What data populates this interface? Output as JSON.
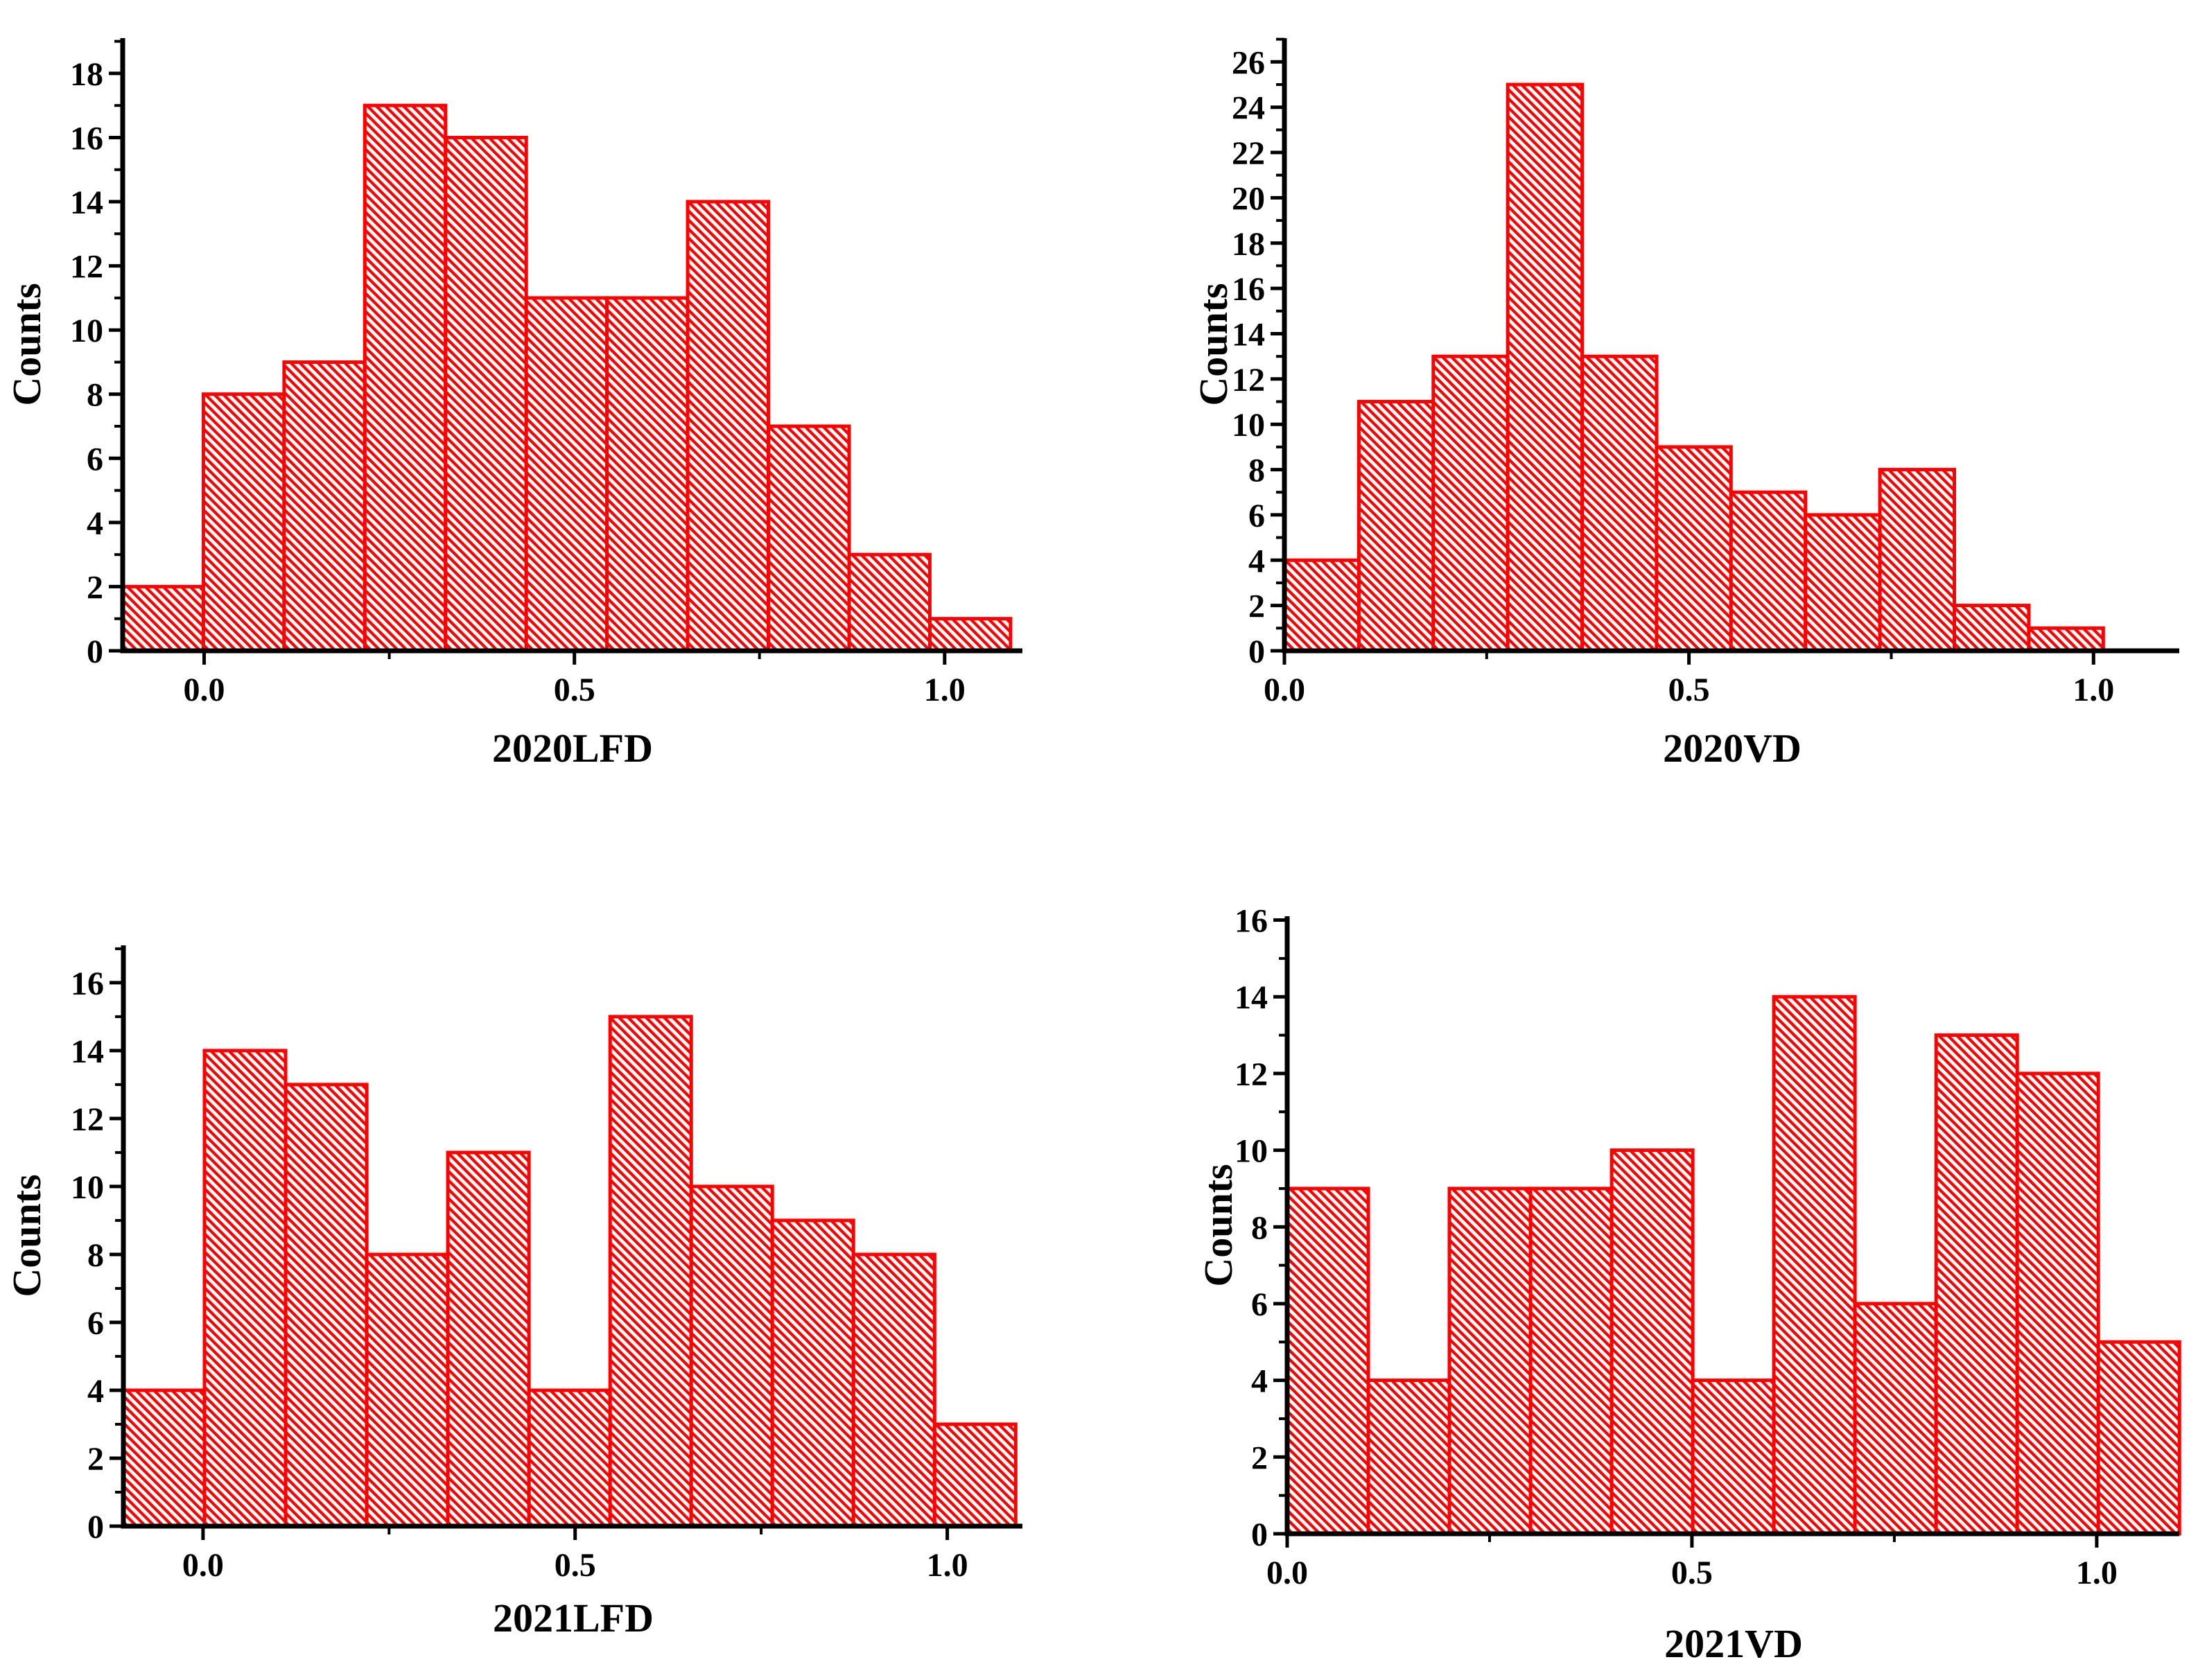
{
  "figure": {
    "background_color": "#FFFFFF",
    "bar_color": "#FF0000",
    "axis_color": "#000000",
    "text_color": "#000000",
    "bar_fill_style": "white with red diagonal hatch"
  },
  "chart_data": [
    {
      "type": "bar",
      "subtype": "histogram",
      "xlabel": "2020LFD",
      "ylabel": "Counts",
      "bin_start": -0.11,
      "bin_width": 0.109,
      "values": [
        2,
        8,
        9,
        17,
        16,
        11,
        11,
        14,
        7,
        3,
        1
      ],
      "xlim": [
        -0.11,
        1.105
      ],
      "ylim": [
        0,
        19.1
      ],
      "y_ticks": [
        0,
        2,
        4,
        6,
        8,
        10,
        12,
        14,
        16,
        18
      ],
      "y_minor_step": 1,
      "x_ticks": [
        0,
        0.5,
        1.0
      ],
      "x_tick_labels": [
        "0.0",
        "0.5",
        "1.0"
      ],
      "x_minor_ticks": [
        0.25,
        0.75
      ],
      "grid": false,
      "legend": false,
      "hatch": "diagonal-down"
    },
    {
      "type": "bar",
      "subtype": "histogram",
      "xlabel": "2020VD",
      "ylabel": "Counts",
      "bin_start": 0,
      "bin_width": 0.092,
      "values": [
        4,
        11,
        13,
        25,
        13,
        9,
        7,
        6,
        8,
        2,
        1
      ],
      "xlim": [
        0,
        1.106
      ],
      "ylim": [
        0,
        27.05
      ],
      "y_ticks": [
        0,
        2,
        4,
        6,
        8,
        10,
        12,
        14,
        16,
        18,
        20,
        22,
        24,
        26
      ],
      "y_minor_step": 1,
      "x_ticks": [
        0,
        0.5,
        1.0
      ],
      "x_tick_labels": [
        "0.0",
        "0.5",
        "1.0"
      ],
      "x_minor_ticks": [
        0.25,
        0.75
      ],
      "grid": false,
      "legend": false,
      "hatch": "diagonal-down"
    },
    {
      "type": "bar",
      "subtype": "histogram",
      "xlabel": "2021LFD",
      "ylabel": "Counts",
      "bin_start": -0.107,
      "bin_width": 0.109,
      "values": [
        4,
        14,
        13,
        8,
        11,
        4,
        15,
        10,
        9,
        8,
        3
      ],
      "xlim": [
        -0.107,
        1.101
      ],
      "ylim": [
        0,
        17.1
      ],
      "y_ticks": [
        0,
        2,
        4,
        6,
        8,
        10,
        12,
        14,
        16
      ],
      "y_minor_step": 1,
      "x_ticks": [
        0,
        0.5,
        1.0
      ],
      "x_tick_labels": [
        "0.0",
        "0.5",
        "1.0"
      ],
      "x_minor_ticks": [
        0.25,
        0.75
      ],
      "grid": false,
      "legend": false,
      "hatch": "diagonal-down"
    },
    {
      "type": "bar",
      "subtype": "histogram",
      "xlabel": "2021VD",
      "ylabel": "Counts",
      "bin_start": 0,
      "bin_width": 0.1002,
      "values": [
        9,
        4,
        9,
        9,
        10,
        4,
        14,
        6,
        13,
        12,
        5
      ],
      "xlim": [
        0,
        1.102
      ],
      "ylim": [
        0,
        16.1
      ],
      "y_ticks": [
        0,
        2,
        4,
        6,
        8,
        10,
        12,
        14,
        16
      ],
      "y_minor_step": 1,
      "x_ticks": [
        0,
        0.5,
        1.0
      ],
      "x_tick_labels": [
        "0.0",
        "0.5",
        "1.0"
      ],
      "x_minor_ticks": [
        0.25,
        0.75
      ],
      "grid": false,
      "legend": false,
      "hatch": "diagonal-down"
    }
  ]
}
